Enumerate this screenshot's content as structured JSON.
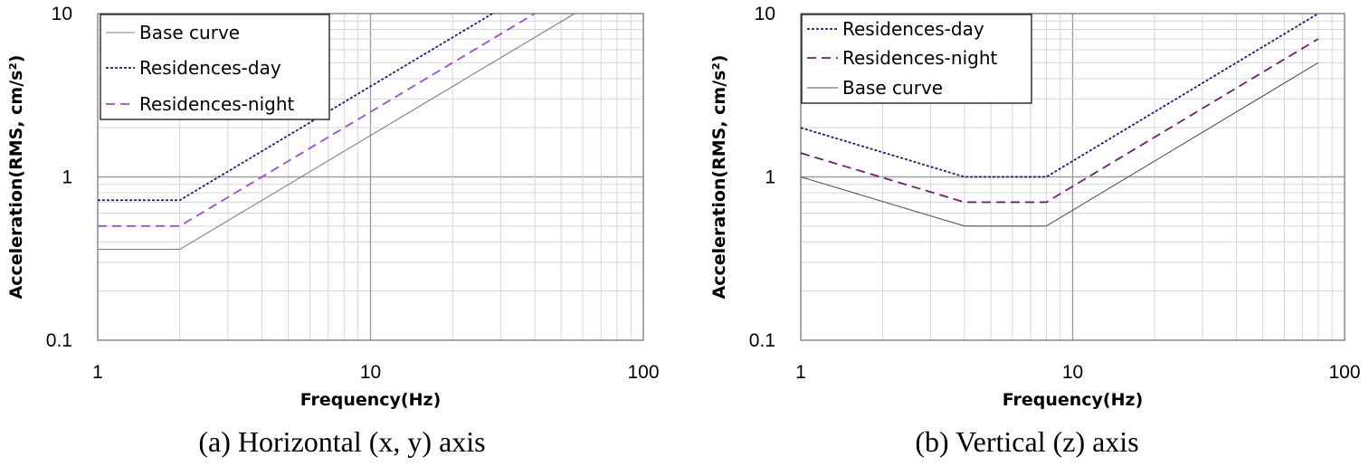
{
  "chart_data": [
    {
      "type": "line",
      "caption": "(a) Horizontal (x, y) axis",
      "xlabel": "Frequency(Hz)",
      "ylabel": "Acceleration(RMS, cm/s²)",
      "xscale": "log",
      "yscale": "log",
      "xlim": [
        1,
        100
      ],
      "ylim": [
        0.1,
        10
      ],
      "xticks": [
        "1",
        "10",
        "100"
      ],
      "yticks": [
        "0.1",
        "1",
        "10"
      ],
      "grid": true,
      "legend_position": "top-left",
      "series": [
        {
          "name": "Base curve",
          "color": "#7f7f7f",
          "style": "solid",
          "x": [
            1,
            2,
            56
          ],
          "y": [
            0.36,
            0.36,
            10
          ]
        },
        {
          "name": "Residences-day",
          "color": "#1f1f6e",
          "style": "dotted",
          "x": [
            1,
            2,
            28
          ],
          "y": [
            0.72,
            0.72,
            10
          ]
        },
        {
          "name": "Residences-night",
          "color": "#9b4fc8",
          "style": "dashed",
          "x": [
            1,
            2,
            40
          ],
          "y": [
            0.5,
            0.5,
            10
          ]
        }
      ]
    },
    {
      "type": "line",
      "caption": "(b) Vertical (z) axis",
      "xlabel": "Frequency(Hz)",
      "ylabel": "Acceleration(RMS, cm/s²)",
      "xscale": "log",
      "yscale": "log",
      "xlim": [
        1,
        100
      ],
      "ylim": [
        0.1,
        10
      ],
      "xticks": [
        "1",
        "10",
        "100"
      ],
      "yticks": [
        "0.1",
        "1",
        "10"
      ],
      "grid": true,
      "legend_position": "top-left",
      "series": [
        {
          "name": "Residences-day",
          "color": "#1f1f6e",
          "style": "dotted",
          "x": [
            1,
            4,
            8,
            80
          ],
          "y": [
            2.0,
            1.0,
            1.0,
            10
          ]
        },
        {
          "name": "Residences-night",
          "color": "#6b1f6e",
          "style": "dashed",
          "x": [
            1,
            4,
            8,
            80
          ],
          "y": [
            1.4,
            0.7,
            0.7,
            7
          ]
        },
        {
          "name": "Base curve",
          "color": "#555555",
          "style": "solid",
          "x": [
            1,
            4,
            8,
            80
          ],
          "y": [
            1.0,
            0.5,
            0.5,
            5
          ]
        }
      ]
    }
  ]
}
